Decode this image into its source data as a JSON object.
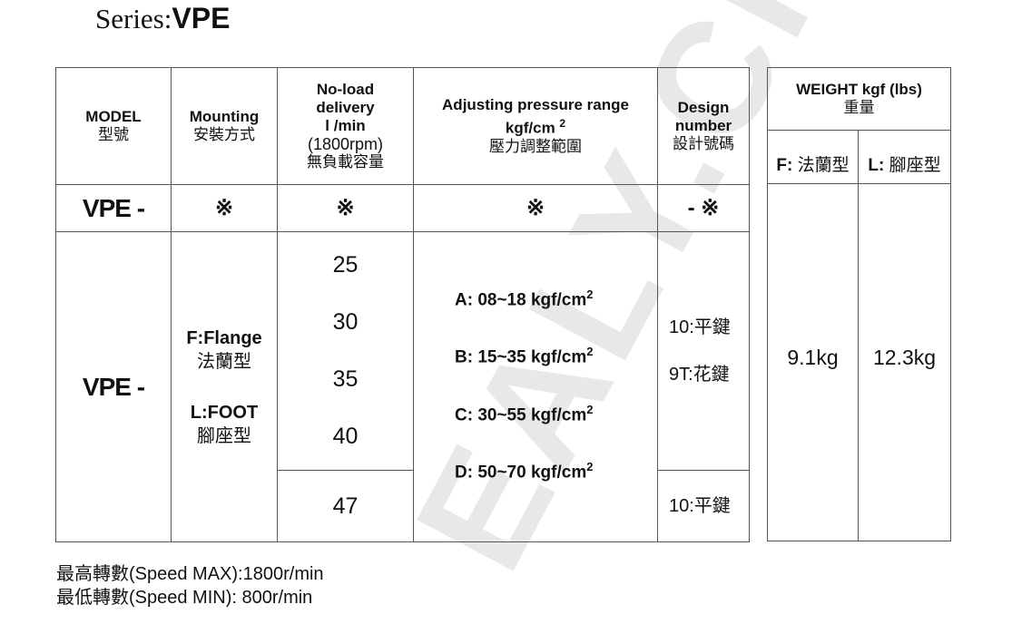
{
  "title": {
    "prefix": "Series:",
    "name": "VPE"
  },
  "watermark": "EALY.CI",
  "table": {
    "headers": {
      "model": [
        "MODEL",
        "型號"
      ],
      "mounting": [
        "Mounting",
        "安裝方式"
      ],
      "delivery": [
        "No-load",
        "delivery",
        "l /min",
        "(1800rpm)",
        "無負載容量"
      ],
      "pressure": [
        "Adjusting pressure range",
        "kgf/cm",
        "2",
        "壓力調整範圍"
      ],
      "design": [
        "Design",
        "number",
        "設計號碼"
      ]
    },
    "code_row": {
      "model": "VPE -",
      "mounting": "※",
      "delivery": "※",
      "pressure": "※",
      "design": "- ※"
    },
    "body": {
      "model": "VPE -",
      "mounting": [
        "F:Flange",
        "法蘭型",
        "L:FOOT",
        "腳座型"
      ],
      "delivery": [
        "25",
        "30",
        "35",
        "40"
      ],
      "delivery_last": "47",
      "pressure": [
        {
          "text": "A: 08~18 kgf/cm",
          "sup": "2"
        },
        {
          "text": "B: 15~35 kgf/cm",
          "sup": "2"
        },
        {
          "text": "C: 30~55 kgf/cm",
          "sup": "2"
        },
        {
          "text": "D: 50~70 kgf/cm",
          "sup": "2"
        }
      ],
      "design": [
        "10:平鍵",
        "9T:花鍵"
      ],
      "design_last": "10:平鍵"
    }
  },
  "weight": {
    "header": [
      "WEIGHT kgf (lbs)",
      "重量"
    ],
    "cols": [
      {
        "key": "F:",
        "label": "法蘭型"
      },
      {
        "key": "L:",
        "label": "腳座型"
      }
    ],
    "values": [
      "9.1kg",
      "12.3kg"
    ]
  },
  "footer": [
    "最高轉數(Speed MAX):1800r/min",
    "最低轉數(Speed MIN): 800r/min"
  ]
}
